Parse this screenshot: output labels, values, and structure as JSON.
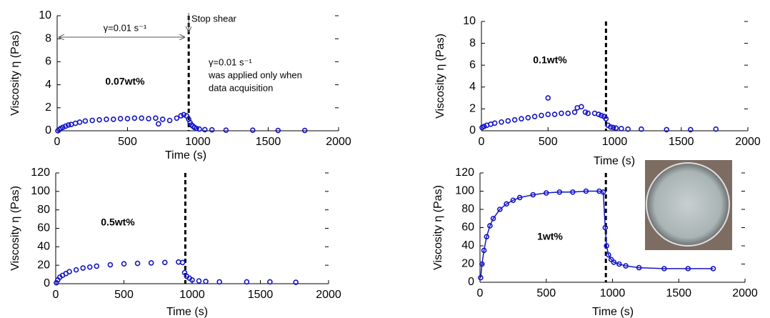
{
  "chart_data": [
    {
      "type": "scatter",
      "title": "0.07wt%",
      "x_label": "Time (s)",
      "y_label": "Viscosity η (Pas)",
      "annotations": [
        "γ=0.01 s⁻¹",
        "Stop shear",
        "γ=0.01 s⁻¹",
        "was applied only when",
        "data acquisition"
      ],
      "vline": 935,
      "xlim": [
        0,
        2000
      ],
      "xticks": [
        0,
        500,
        1000,
        1500,
        2000
      ],
      "ylim": [
        0,
        10
      ],
      "yticks": [
        0,
        2,
        4,
        6,
        8,
        10
      ],
      "series": [
        {
          "color": "#1414c8",
          "x": [
            5,
            15,
            25,
            40,
            60,
            80,
            100,
            130,
            160,
            200,
            250,
            300,
            350,
            400,
            450,
            500,
            550,
            600,
            650,
            700,
            720,
            750,
            800,
            850,
            880,
            900,
            920,
            935,
            945,
            955,
            965,
            975,
            990,
            1010,
            1050,
            1100,
            1200,
            1390,
            1570,
            1760
          ],
          "values": [
            0,
            0.1,
            0.2,
            0.3,
            0.4,
            0.5,
            0.55,
            0.65,
            0.75,
            0.85,
            0.9,
            0.95,
            1.0,
            1.0,
            1.05,
            1.05,
            1.1,
            1.1,
            1.05,
            1.1,
            0.6,
            1.0,
            0.9,
            1.1,
            1.3,
            1.4,
            1.3,
            1.0,
            0.7,
            0.5,
            0.4,
            0.3,
            0.2,
            0.15,
            0.1,
            0.08,
            0.05,
            0.05,
            0.03,
            0.03
          ]
        }
      ]
    },
    {
      "type": "scatter",
      "title": "0.1wt%",
      "x_label": "Time (s)",
      "y_label": "Viscosity η (Pas)",
      "vline": 935,
      "xlim": [
        0,
        2000
      ],
      "xticks": [
        0,
        500,
        1000,
        1500,
        2000
      ],
      "ylim": [
        0,
        10
      ],
      "yticks": [
        0,
        2,
        4,
        6,
        8,
        10
      ],
      "series": [
        {
          "color": "#1414c8",
          "x": [
            5,
            20,
            40,
            70,
            100,
            150,
            200,
            250,
            300,
            350,
            400,
            450,
            500,
            500,
            550,
            600,
            650,
            700,
            720,
            750,
            780,
            800,
            850,
            880,
            900,
            920,
            935,
            950,
            970,
            990,
            1010,
            1050,
            1100,
            1200,
            1390,
            1570,
            1760
          ],
          "values": [
            0.3,
            0.4,
            0.5,
            0.6,
            0.7,
            0.8,
            0.9,
            1.0,
            1.1,
            1.2,
            1.3,
            1.4,
            1.5,
            3.0,
            1.5,
            1.6,
            1.6,
            1.7,
            2.1,
            2.2,
            1.7,
            1.6,
            1.6,
            1.5,
            1.4,
            1.3,
            1.1,
            0.5,
            0.35,
            0.3,
            0.25,
            0.2,
            0.15,
            0.15,
            0.1,
            0.1,
            0.15
          ]
        }
      ]
    },
    {
      "type": "scatter",
      "title": "0.5wt%",
      "x_label": "Time (s)",
      "y_label": "Viscosity η (Pas)",
      "vline": 950,
      "xlim": [
        0,
        2000
      ],
      "xticks": [
        0,
        500,
        1000,
        1500,
        2000
      ],
      "ylim": [
        0,
        120
      ],
      "yticks": [
        0,
        20,
        40,
        60,
        80,
        100,
        120
      ],
      "series": [
        {
          "color": "#1414c8",
          "x": [
            5,
            15,
            30,
            50,
            75,
            100,
            150,
            200,
            250,
            300,
            400,
            500,
            600,
            700,
            800,
            900,
            930,
            945,
            960,
            980,
            1000,
            1050,
            1100,
            1200,
            1400,
            1570,
            1760
          ],
          "values": [
            1,
            4,
            7,
            9,
            11,
            13,
            15,
            17,
            18,
            19,
            20.5,
            21.5,
            22,
            22.5,
            23,
            23.5,
            23,
            12,
            8,
            6,
            4,
            3,
            2.5,
            2,
            2,
            2,
            1.5
          ]
        }
      ]
    },
    {
      "type": "scatter",
      "title": "1wt%",
      "x_label": "Time (s)",
      "y_label": "Viscosity η (Pas)",
      "connect": true,
      "vline": 950,
      "xlim": [
        0,
        2000
      ],
      "xticks": [
        0,
        500,
        1000,
        1500,
        2000
      ],
      "ylim": [
        0,
        120
      ],
      "yticks": [
        0,
        20,
        40,
        60,
        80,
        100,
        120
      ],
      "series": [
        {
          "color": "#1414c8",
          "x": [
            5,
            15,
            30,
            50,
            75,
            100,
            150,
            200,
            250,
            300,
            400,
            500,
            600,
            700,
            800,
            900,
            930,
            945,
            955,
            970,
            990,
            1010,
            1050,
            1100,
            1200,
            1390,
            1570,
            1760
          ],
          "values": [
            5,
            20,
            35,
            50,
            62,
            70,
            80,
            86,
            90,
            93,
            96,
            98,
            99,
            99,
            100,
            100,
            99,
            60,
            40,
            30,
            25,
            22,
            20,
            18,
            16,
            15,
            15,
            15
          ]
        }
      ]
    }
  ]
}
